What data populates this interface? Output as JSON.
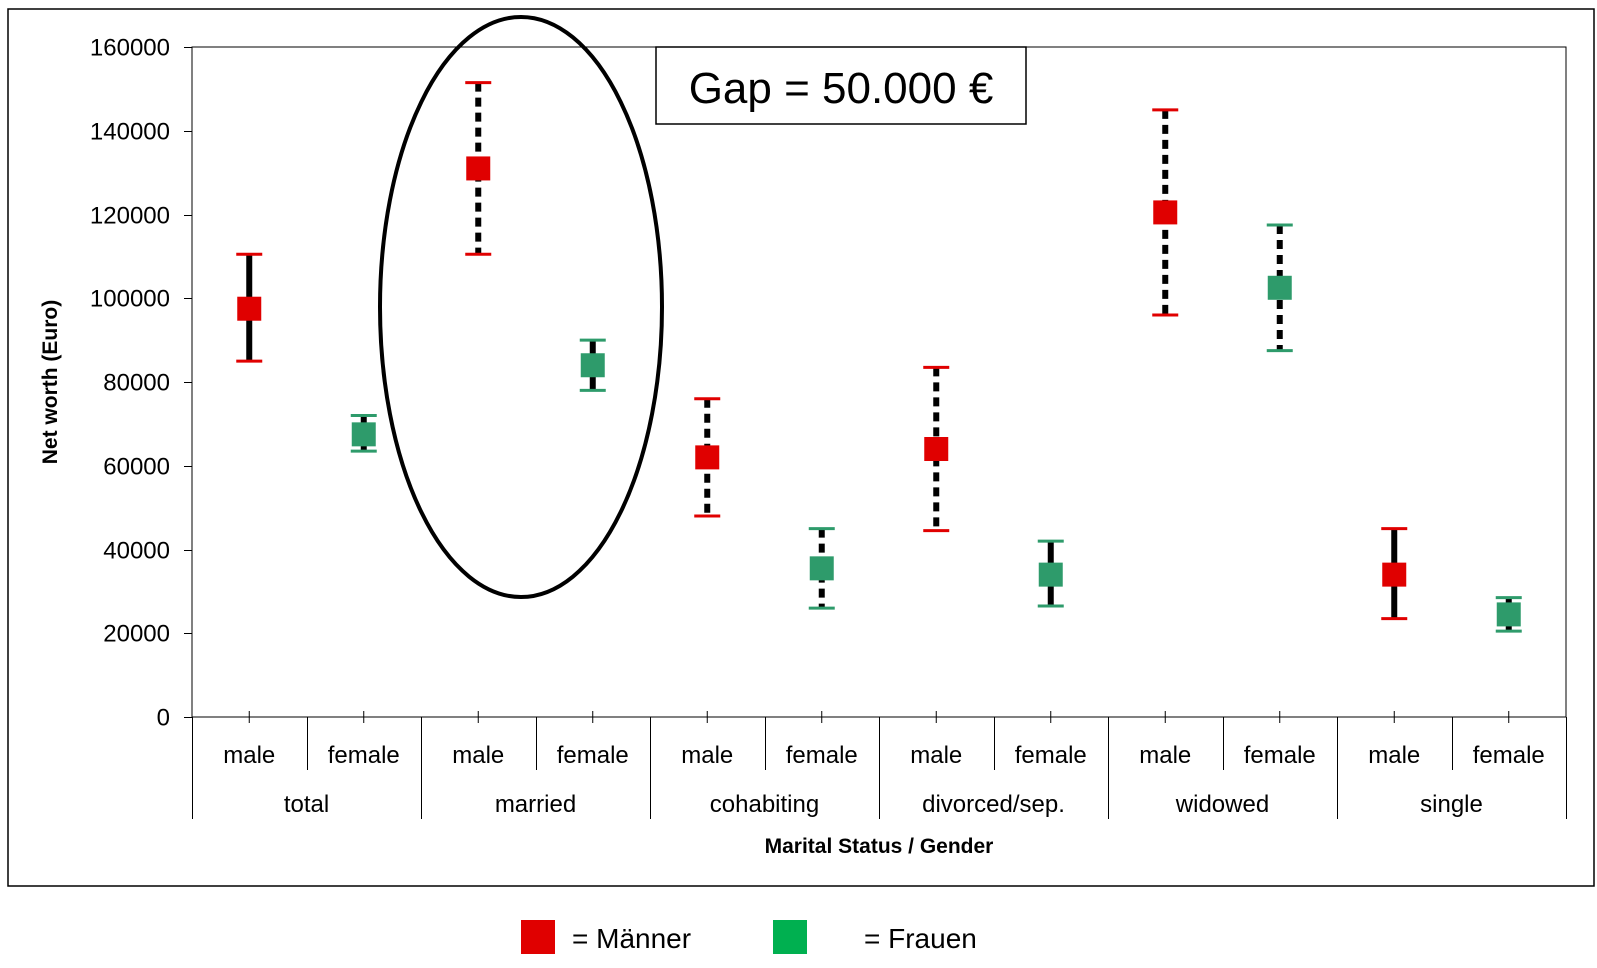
{
  "chart_data": {
    "type": "scatter",
    "title": "",
    "xlabel": "Marital Status / Gender",
    "ylabel": "Net worth (Euro)",
    "ylim": [
      0,
      160000
    ],
    "yticks": [
      "0",
      "20000",
      "40000",
      "60000",
      "80000",
      "100000",
      "120000",
      "140000",
      "160000"
    ],
    "ytick_values": [
      0,
      20000,
      40000,
      60000,
      80000,
      100000,
      120000,
      140000,
      160000
    ],
    "grid": false,
    "groups": [
      "total",
      "married",
      "cohabiting",
      "divorced/sep.",
      "widowed",
      "single"
    ],
    "genders": [
      "male",
      "female"
    ],
    "points": [
      {
        "group": "total",
        "gender": "male",
        "value": 97500,
        "low": 85000,
        "high": 110500,
        "color": "#E00000",
        "err_style": "solid"
      },
      {
        "group": "total",
        "gender": "female",
        "value": 67500,
        "low": 63500,
        "high": 72000,
        "color": "#2E9B6B",
        "err_style": "solid"
      },
      {
        "group": "married",
        "gender": "male",
        "value": 131000,
        "low": 110500,
        "high": 151500,
        "color": "#E00000",
        "err_style": "dashed"
      },
      {
        "group": "married",
        "gender": "female",
        "value": 84000,
        "low": 78000,
        "high": 90000,
        "color": "#2E9B6B",
        "err_style": "solid"
      },
      {
        "group": "cohabiting",
        "gender": "male",
        "value": 62000,
        "low": 48000,
        "high": 76000,
        "color": "#E00000",
        "err_style": "dashed"
      },
      {
        "group": "cohabiting",
        "gender": "female",
        "value": 35500,
        "low": 26000,
        "high": 45000,
        "color": "#2E9B6B",
        "err_style": "dashed"
      },
      {
        "group": "divorced/sep.",
        "gender": "male",
        "value": 64000,
        "low": 44500,
        "high": 83500,
        "color": "#E00000",
        "err_style": "dashed"
      },
      {
        "group": "divorced/sep.",
        "gender": "female",
        "value": 34000,
        "low": 26500,
        "high": 42000,
        "color": "#2E9B6B",
        "err_style": "solid"
      },
      {
        "group": "widowed",
        "gender": "male",
        "value": 120500,
        "low": 96000,
        "high": 145000,
        "color": "#E00000",
        "err_style": "dashed"
      },
      {
        "group": "widowed",
        "gender": "female",
        "value": 102500,
        "low": 87500,
        "high": 117500,
        "color": "#2E9B6B",
        "err_style": "dashed"
      },
      {
        "group": "single",
        "gender": "male",
        "value": 34000,
        "low": 23500,
        "high": 45000,
        "color": "#E00000",
        "err_style": "solid"
      },
      {
        "group": "single",
        "gender": "female",
        "value": 24500,
        "low": 20500,
        "high": 28500,
        "color": "#2E9B6B",
        "err_style": "solid"
      }
    ],
    "annotation": "Gap = 50.000 €",
    "legend": [
      {
        "label": "= Männer",
        "color": "#E00000"
      },
      {
        "label": "= Frauen",
        "color": "#00B050"
      }
    ]
  }
}
